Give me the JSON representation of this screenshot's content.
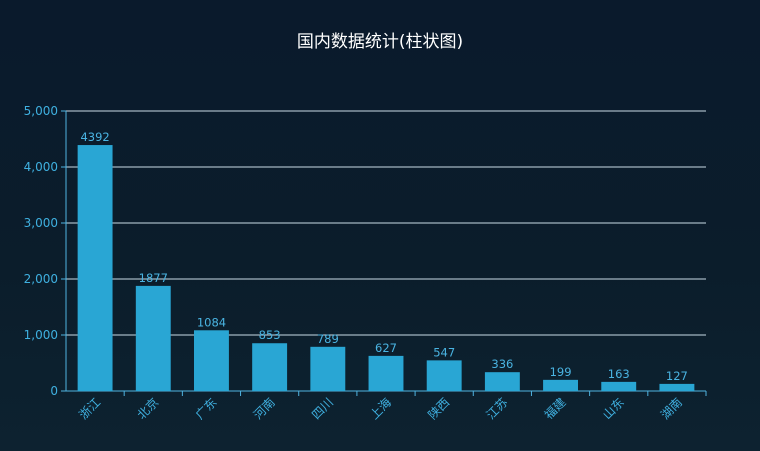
{
  "chart_data": {
    "type": "bar",
    "title": "国内数据统计(柱状图)",
    "xlabel": "",
    "ylabel": "",
    "categories": [
      "浙江",
      "北京",
      "广东",
      "河南",
      "四川",
      "上海",
      "陕西",
      "江苏",
      "福建",
      "山东",
      "湖南"
    ],
    "values": [
      4392,
      1877,
      1084,
      853,
      789,
      627,
      547,
      336,
      199,
      163,
      127
    ],
    "ylim": [
      0,
      5000
    ],
    "y_ticks": [
      0,
      1000,
      2000,
      3000,
      4000,
      5000
    ],
    "y_tick_labels": [
      "0",
      "1,000",
      "2,000",
      "3,000",
      "4,000",
      "5,000"
    ],
    "grid": true,
    "show_data_labels": true,
    "x_label_rotation": "-45deg",
    "colors": {
      "bar": "#29a6d4",
      "axis": "#4fb3e0",
      "grid": "#c9dbe6",
      "tick_text": "#3fb0e0",
      "data_label": "#4ab4e2",
      "title": "#ffffff",
      "background": "#0b1b2b"
    }
  }
}
